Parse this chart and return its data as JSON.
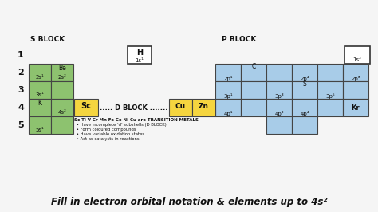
{
  "title": "Fill in electron orbital notation & elements up to 4s²",
  "bg_color": "#f5f5f5",
  "green": "#8dc26f",
  "yellow": "#f5d53f",
  "blue": "#a8cce8",
  "white": "#ffffff",
  "black": "#000000",
  "s_block_label": "S BLOCK",
  "p_block_label": "P BLOCK",
  "d_block_label": "..... D BLOCK .......",
  "transition_text": "Sc Ti V Cr Mn Fe Co Ni Cu are TRANSITION METALS",
  "bullet1": "Have incomplete ‘d’ subshells (D BLOCK)",
  "bullet2": "Form coloured compounds",
  "bullet3": "Have variable oxidation states",
  "bullet4": "Act as catalysts in reactions",
  "row_labels": [
    "1",
    "2",
    "3",
    "4",
    "5"
  ],
  "fig_w": 4.74,
  "fig_h": 2.66,
  "dpi": 100
}
